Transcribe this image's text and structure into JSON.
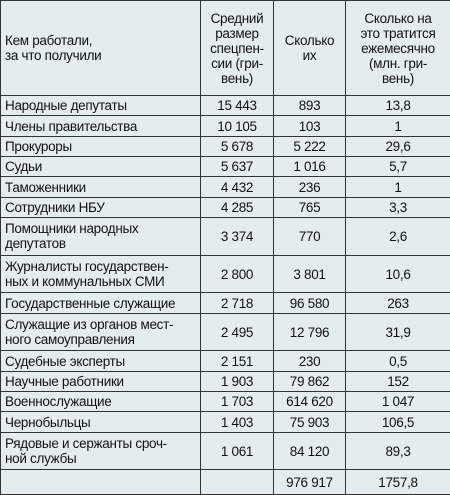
{
  "table": {
    "header": [
      "Кем работали,\nза что получили",
      "Средний\nразмер\nспецпен-\nсии (гри-\nвень)",
      "Сколько\nих",
      "Сколько на\nэто тратится\nежемесячно\n(млн. гри-\nвень)"
    ],
    "rows": [
      [
        "Народные депутаты",
        "15 443",
        "893",
        "13,8"
      ],
      [
        "Члены правительства",
        "10 105",
        "103",
        "1"
      ],
      [
        "Прокуроры",
        "5 678",
        "5 222",
        "29,6"
      ],
      [
        "Судьи",
        "5 637",
        "1 016",
        "5,7"
      ],
      [
        "Таможенники",
        "4 432",
        "236",
        "1"
      ],
      [
        "Сотрудники НБУ",
        "4 285",
        "765",
        "3,3"
      ],
      [
        "Помощники народных\nдепутатов",
        "3 374",
        "770",
        "2,6"
      ],
      [
        "Журналисты государствен-\nных и коммунальных СМИ",
        "2 800",
        "3 801",
        "10,6"
      ],
      [
        "Государственные служащие",
        "2 718",
        "96 580",
        "263"
      ],
      [
        "Служащие из органов мест-\nного самоуправления",
        "2 495",
        "12 796",
        "31,9"
      ],
      [
        "Судебные эксперты",
        "2 151",
        "230",
        "0,5"
      ],
      [
        "Научные работники",
        "1 903",
        "79 862",
        "152"
      ],
      [
        "Военнослужащие",
        "1 703",
        "614 620",
        "1 047"
      ],
      [
        "Чернобыльцы",
        "1 403",
        "75 903",
        "106,5"
      ],
      [
        "Рядовые и сержанты сроч-\nной службы",
        "1 061",
        "84 120",
        "89,3"
      ]
    ],
    "totals": [
      "976 917",
      "1757,8"
    ]
  }
}
